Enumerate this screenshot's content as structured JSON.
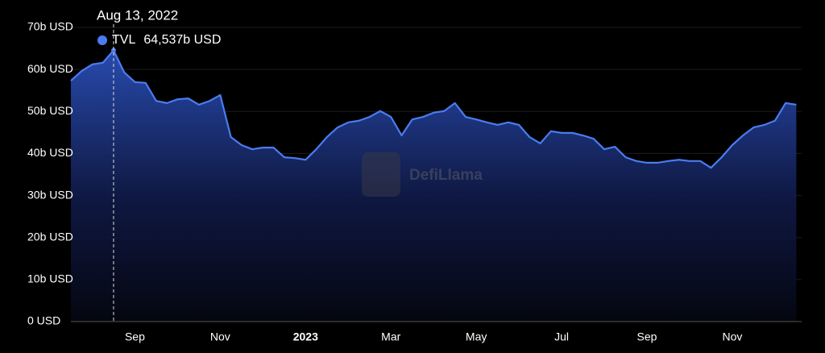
{
  "chart_data": {
    "type": "area",
    "watermark": "DefiLlama",
    "tooltip": {
      "date": "Aug 13, 2022"
    },
    "categories": [
      null,
      null,
      null,
      null,
      null,
      null,
      "Sep",
      null,
      null,
      null,
      null,
      null,
      null,
      null,
      "Nov",
      null,
      null,
      null,
      null,
      null,
      null,
      null,
      "2023",
      null,
      null,
      null,
      null,
      null,
      null,
      null,
      "Mar",
      null,
      null,
      null,
      null,
      null,
      null,
      null,
      "May",
      null,
      null,
      null,
      null,
      null,
      null,
      null,
      "Jul",
      null,
      null,
      null,
      null,
      null,
      null,
      null,
      "Sep",
      null,
      null,
      null,
      null,
      null,
      null,
      null,
      "Nov",
      null,
      null,
      null,
      null,
      null,
      null
    ],
    "series": [
      {
        "name": "TVL",
        "color": "#4a7cf0",
        "values": [
          57.3,
          59.6,
          61.2,
          61.6,
          64.537,
          59.3,
          57.0,
          56.8,
          52.5,
          52.0,
          52.9,
          53.1,
          51.6,
          52.5,
          53.9,
          43.9,
          42.0,
          41.0,
          41.4,
          41.4,
          39.1,
          38.9,
          38.5,
          41.0,
          43.9,
          46.2,
          47.4,
          47.8,
          48.7,
          50.1,
          48.7,
          44.3,
          48.1,
          48.7,
          49.7,
          50.1,
          52.0,
          48.7,
          48.1,
          47.4,
          46.8,
          47.4,
          46.8,
          43.9,
          42.4,
          45.3,
          44.9,
          44.9,
          44.3,
          43.5,
          41.0,
          41.6,
          39.1,
          38.2,
          37.8,
          37.8,
          38.2,
          38.5,
          38.2,
          38.2,
          36.6,
          39.1,
          42.0,
          44.3,
          46.2,
          46.8,
          47.8,
          52.0,
          51.6
        ],
        "value_labels": [
          null,
          null,
          null,
          null,
          "64,537b USD",
          null,
          null,
          null,
          null,
          null,
          null,
          null,
          null,
          null,
          null,
          null,
          null,
          null,
          null,
          null,
          null,
          null,
          null,
          null,
          null,
          null,
          null,
          null,
          null,
          null,
          null,
          null,
          null,
          null,
          null,
          null,
          null,
          null,
          null,
          null,
          null,
          null,
          null,
          null,
          null,
          null,
          null,
          null,
          null,
          null,
          null,
          null,
          null,
          null,
          null,
          null,
          null,
          null,
          null,
          null,
          null,
          null,
          null,
          null,
          null,
          null,
          null,
          null,
          null
        ]
      }
    ],
    "ylim": [
      0,
      70
    ],
    "yticks": [
      {
        "value": 0,
        "label": "0 USD"
      },
      {
        "value": 10,
        "label": "10b USD"
      },
      {
        "value": 20,
        "label": "20b USD"
      },
      {
        "value": 30,
        "label": "30b USD"
      },
      {
        "value": 40,
        "label": "40b USD"
      },
      {
        "value": 50,
        "label": "50b USD"
      },
      {
        "value": 60,
        "label": "60b USD"
      },
      {
        "value": 70,
        "label": "70b USD"
      }
    ],
    "grid": true
  }
}
